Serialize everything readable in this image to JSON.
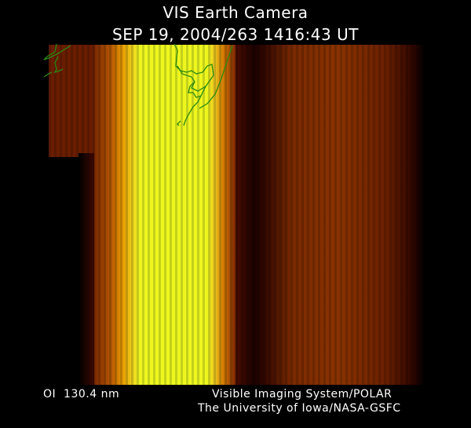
{
  "header": {
    "title": "VIS Earth Camera",
    "timestamp": "SEP 19, 2004/263 1416:43 UT"
  },
  "image": {
    "description_colors": {
      "bright": "#eeff20",
      "mid": "#e8a000",
      "dim": "#6a1e00",
      "coastline": "#2a8a10"
    }
  },
  "footer": {
    "wavelength": "OI  130.4 nm",
    "system": "Visible Imaging System/POLAR",
    "institution": "The University of Iowa/NASA-GSFC"
  }
}
